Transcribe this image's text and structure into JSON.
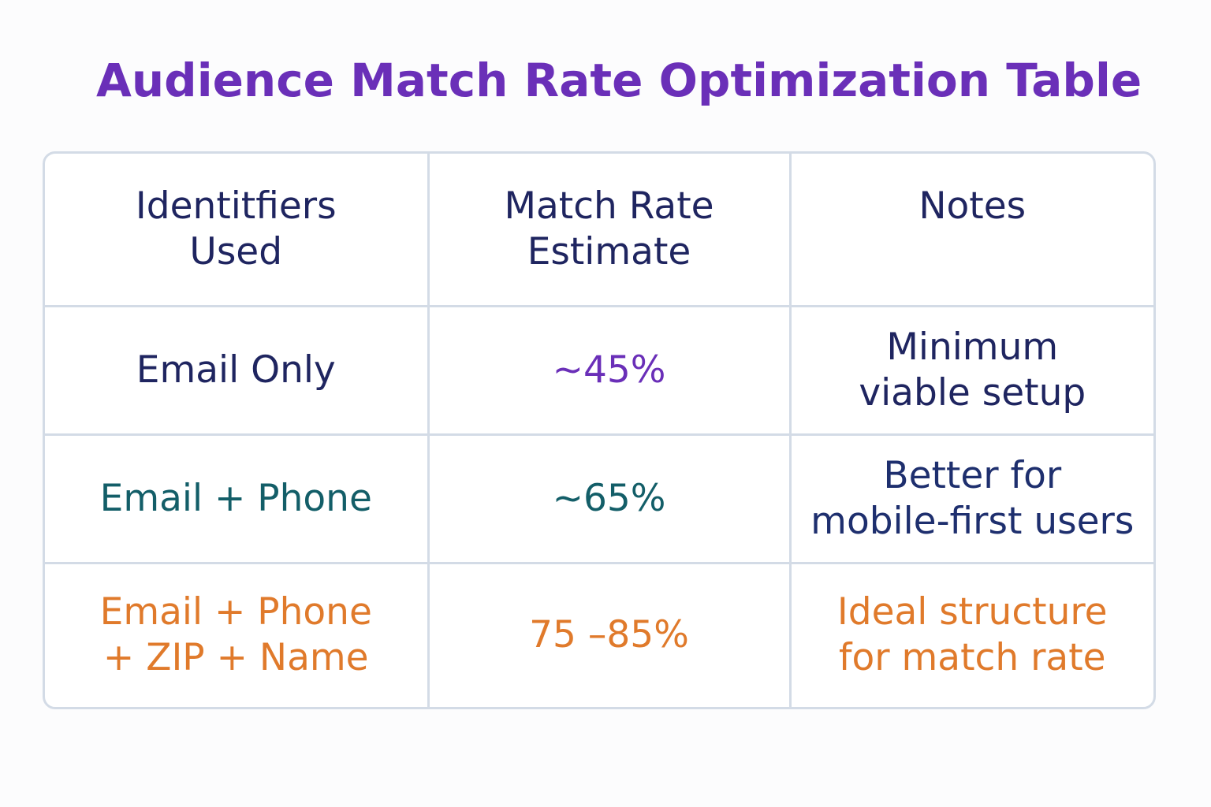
{
  "title": "Audience Match Rate Optimization Table",
  "colors": {
    "title": "#6a2fb8",
    "border": "#d3dbe6",
    "header_text": "#1f2560",
    "row1_value": "#6a2fb8",
    "row2_text": "#135e68",
    "row2_notes": "#1e2f6e",
    "row3_text": "#e07a2b"
  },
  "table": {
    "headers": [
      "Identitfiers\nUsed",
      "Match Rate\nEstimate",
      "Notes"
    ],
    "rows": [
      {
        "identifiers": "Email Only",
        "match_rate": "~45%",
        "notes": "Minimum\nviable setup"
      },
      {
        "identifiers": "Email + Phone",
        "match_rate": "~65%",
        "notes": "Better for\nmobile-first users"
      },
      {
        "identifiers": "Email + Phone\n+ ZIP + Name",
        "match_rate": "75 –85%",
        "notes": "Ideal structure\nfor match rate"
      }
    ]
  }
}
